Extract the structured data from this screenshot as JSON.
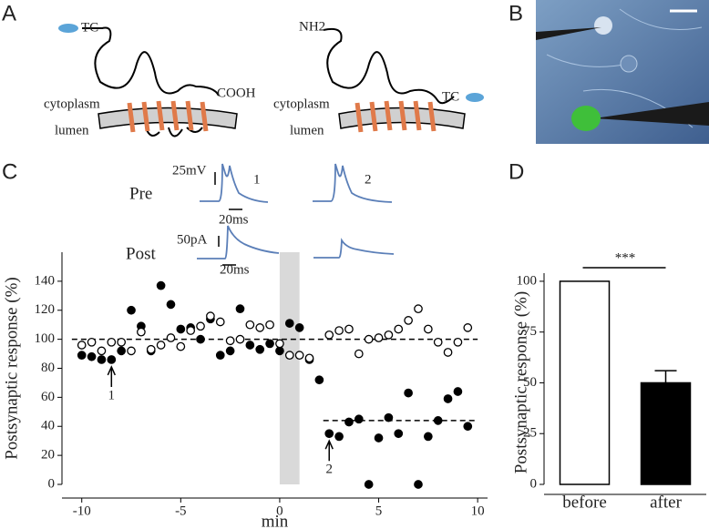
{
  "panels": {
    "a": "A",
    "b": "B",
    "c": "C",
    "d": "D"
  },
  "diagram": {
    "left": {
      "tag": "TC",
      "terminal": "COOH",
      "cytoplasm": "cytoplasm",
      "lumen": "lumen"
    },
    "right": {
      "terminal": "NH2",
      "tag": "TC",
      "cytoplasm": "cytoplasm",
      "lumen": "lumen"
    }
  },
  "traces": {
    "pre": "Pre",
    "post": "Post",
    "pre_scale": "25mV",
    "pre_time": "20ms",
    "post_scale": "50pA",
    "post_time": "20ms",
    "label_1": "1",
    "label_2": "2"
  },
  "chart_data": [
    {
      "type": "scatter",
      "xlabel": "min",
      "ylabel": "Postsynaptic response (%)",
      "xlim": [
        -11,
        10.5
      ],
      "ylim": [
        0,
        160
      ],
      "xticks": [
        -10,
        -5,
        0,
        5,
        10
      ],
      "yticks": [
        0,
        20,
        40,
        60,
        80,
        100,
        120,
        140
      ],
      "shaded": [
        0,
        1
      ],
      "reference_lines": [
        {
          "y": 100,
          "x": [
            -10.5,
            10
          ]
        },
        {
          "y": 44,
          "x": [
            2.2,
            10
          ]
        }
      ],
      "annotations": [
        {
          "text": "1",
          "x": -8.5,
          "y": 86
        },
        {
          "text": "2",
          "x": 2.5,
          "y": 35
        }
      ],
      "series": [
        {
          "fill": "#000000",
          "color": "#000000",
          "x": [
            -10,
            -9.5,
            -9,
            -8.5,
            -8,
            -7.5,
            -7,
            -6.5,
            -6,
            -5.5,
            -5,
            -4.5,
            -4,
            -3.5,
            -3,
            -2.5,
            -2,
            -1.5,
            -1,
            -0.5,
            0,
            0.5,
            1,
            1.5,
            2,
            2.5,
            3,
            3.5,
            4,
            4.5,
            5,
            5.5,
            6,
            6.5,
            7,
            7.5,
            8,
            8.5,
            9,
            9.5
          ],
          "y": [
            89,
            88,
            86,
            86,
            92,
            120,
            109,
            92,
            137,
            124,
            107,
            108,
            100,
            114,
            89,
            92,
            121,
            96,
            93,
            97,
            92,
            111,
            108,
            86,
            72,
            35,
            33,
            43,
            45,
            0,
            32,
            46,
            35,
            63,
            0,
            33,
            44,
            59,
            64,
            40
          ]
        },
        {
          "fill": "#ffffff",
          "color": "#000000",
          "x": [
            -10,
            -9.5,
            -9,
            -8.5,
            -8,
            -7.5,
            -7,
            -6.5,
            -6,
            -5.5,
            -5,
            -4.5,
            -4,
            -3.5,
            -3,
            -2.5,
            -2,
            -1.5,
            -1,
            -0.5,
            0,
            0.5,
            1,
            1.5,
            2.5,
            3,
            3.5,
            4,
            4.5,
            5,
            5.5,
            6,
            6.5,
            7,
            7.5,
            8,
            8.5,
            9,
            9.5
          ],
          "y": [
            96,
            98,
            92,
            98,
            98,
            92,
            105,
            93,
            96,
            101,
            95,
            106,
            109,
            116,
            112,
            99,
            100,
            110,
            108,
            110,
            97,
            89,
            89,
            87,
            103,
            106,
            107,
            90,
            100,
            101,
            103,
            107,
            113,
            121,
            107,
            98,
            91,
            98,
            108
          ]
        }
      ]
    },
    {
      "type": "bar",
      "ylabel": "Postsynaptic response (%)",
      "categories": [
        "before",
        "after"
      ],
      "values": [
        100,
        50
      ],
      "errors": [
        null,
        6
      ],
      "colors": [
        "#ffffff",
        "#000000"
      ],
      "ylim": [
        0,
        104
      ],
      "yticks": [
        0,
        25,
        50,
        75,
        100
      ],
      "significance": "***"
    }
  ]
}
